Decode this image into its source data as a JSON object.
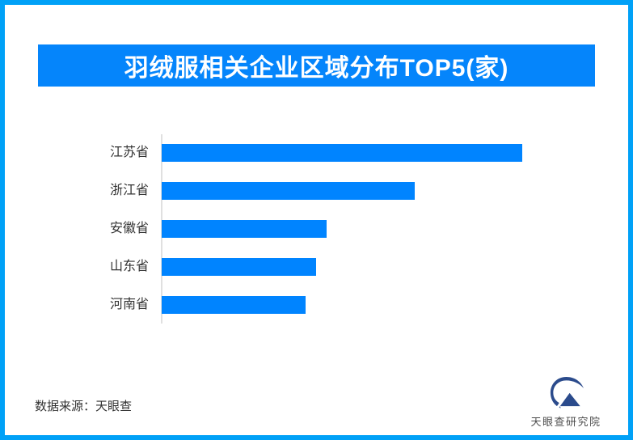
{
  "page": {
    "background": "#ffffff",
    "border_color": "#00a1f7"
  },
  "header": {
    "title": "羽绒服相关企业区域分布TOP5(家)",
    "bg_color": "#0585fb",
    "text_color": "#ffffff"
  },
  "chart_data": {
    "type": "bar",
    "orientation": "horizontal",
    "title": "羽绒服相关企业区域分布TOP5(家)",
    "xlabel": "",
    "ylabel": "",
    "categories": [
      "江苏省",
      "浙江省",
      "安徽省",
      "山东省",
      "河南省"
    ],
    "values": [
      446,
      313,
      204,
      191,
      178
    ],
    "values_relative_pct": [
      100,
      70.2,
      45.7,
      42.8,
      39.9
    ],
    "value_labels_shown": false,
    "grid": false,
    "legend": "none",
    "bar_color": "#0084ff",
    "axis_line_color": "#e0e0e0"
  },
  "footer": {
    "source_label": "数据来源：天眼查",
    "logo_text": "天眼查研究院",
    "logo_color": "#2b4b8c"
  }
}
